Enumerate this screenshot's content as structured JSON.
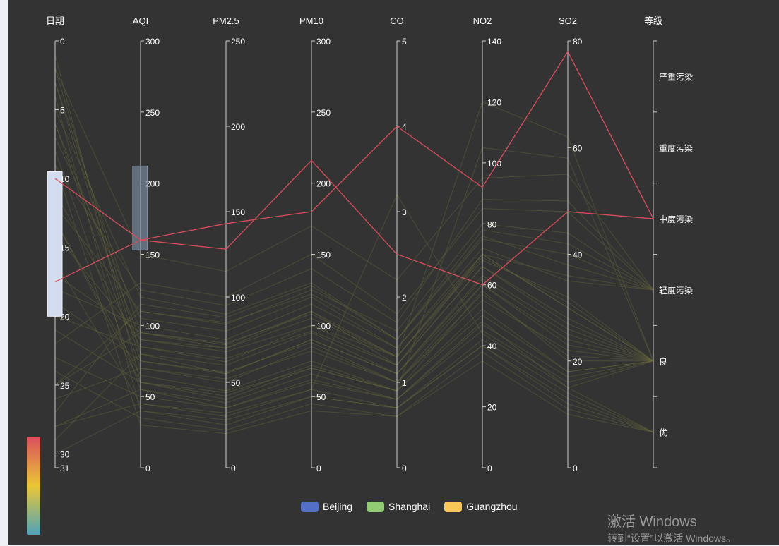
{
  "colors": {
    "background": "#333333",
    "axis": "#cccccc",
    "axis_label": "#ffffff",
    "brush": "#d4dcef",
    "brush_aqi": "#8496ae",
    "highlight": "#d94e5d",
    "faint": "#6a6a3e",
    "visualmap": [
      "#d94e5d",
      "#eac736",
      "#50a3ba"
    ]
  },
  "legend": [
    {
      "name": "Beijing",
      "color": "#5470c6"
    },
    {
      "name": "Shanghai",
      "color": "#91cc75"
    },
    {
      "name": "Guangzhou",
      "color": "#fac858"
    }
  ],
  "watermark": {
    "title": "激活 Windows",
    "subtitle": "转到“设置”以激活 Windows。"
  },
  "chart_data": {
    "type": "parallel",
    "axes": [
      {
        "name": "日期",
        "min": 0,
        "max": 31,
        "ticks": [
          0,
          5,
          10,
          15,
          20,
          25,
          30,
          31
        ],
        "inverse": true,
        "brush": [
          9.5,
          20
        ]
      },
      {
        "name": "AQI",
        "min": 0,
        "max": 300,
        "ticks": [
          0,
          50,
          100,
          150,
          200,
          250,
          300
        ],
        "brush": [
          153,
          212
        ]
      },
      {
        "name": "PM2.5",
        "min": 0,
        "max": 250,
        "ticks": [
          0,
          50,
          100,
          150,
          200,
          250
        ]
      },
      {
        "name": "PM10",
        "min": 0,
        "max": 300,
        "ticks": [
          0,
          50,
          100,
          150,
          200,
          250,
          300
        ]
      },
      {
        "name": "CO",
        "min": 0,
        "max": 5,
        "ticks": [
          0,
          1,
          2,
          3,
          4,
          5
        ]
      },
      {
        "name": "NO2",
        "min": 0,
        "max": 140,
        "ticks": [
          0,
          20,
          40,
          60,
          80,
          100,
          120,
          140
        ]
      },
      {
        "name": "SO2",
        "min": 0,
        "max": 80,
        "ticks": [
          0,
          20,
          40,
          60,
          80
        ]
      },
      {
        "name": "等级",
        "type": "category",
        "categories": [
          "优",
          "良",
          "轻度污染",
          "中度污染",
          "重度污染",
          "严重污染"
        ]
      }
    ],
    "highlighted": [
      [
        10,
        160,
        143,
        180,
        4,
        92,
        78,
        "中度污染"
      ],
      [
        17.5,
        160,
        128,
        216,
        2.5,
        60,
        48,
        "中度污染"
      ]
    ],
    "background_lines": [
      [
        1,
        60,
        40,
        70,
        0.9,
        50,
        18,
        "良"
      ],
      [
        2,
        80,
        55,
        90,
        1.1,
        62,
        25,
        "良"
      ],
      [
        3,
        95,
        70,
        110,
        1.2,
        70,
        30,
        "良"
      ],
      [
        4,
        40,
        25,
        50,
        0.7,
        40,
        12,
        "优"
      ],
      [
        5,
        120,
        90,
        130,
        1.5,
        75,
        40,
        "轻度污染"
      ],
      [
        6,
        70,
        50,
        85,
        1.0,
        55,
        22,
        "良"
      ],
      [
        7,
        105,
        80,
        120,
        1.4,
        72,
        35,
        "轻度污染"
      ],
      [
        8,
        55,
        35,
        60,
        0.8,
        48,
        15,
        "良"
      ],
      [
        9,
        30,
        20,
        40,
        0.6,
        35,
        10,
        "优"
      ],
      [
        11,
        85,
        62,
        100,
        1.2,
        66,
        28,
        "良"
      ],
      [
        12,
        110,
        84,
        125,
        1.6,
        80,
        44,
        "轻度污染"
      ],
      [
        13,
        65,
        45,
        75,
        0.9,
        58,
        20,
        "良"
      ],
      [
        14,
        90,
        70,
        105,
        1.3,
        68,
        32,
        "良"
      ],
      [
        16,
        45,
        30,
        55,
        0.7,
        42,
        14,
        "优"
      ],
      [
        18,
        100,
        75,
        115,
        1.4,
        70,
        36,
        "轻度污染"
      ],
      [
        19,
        75,
        55,
        90,
        1.1,
        60,
        24,
        "良"
      ],
      [
        21,
        60,
        42,
        72,
        0.9,
        52,
        18,
        "良"
      ],
      [
        22,
        130,
        100,
        150,
        1.8,
        85,
        48,
        "轻度污染"
      ],
      [
        23,
        50,
        35,
        62,
        0.8,
        45,
        16,
        "良"
      ],
      [
        24,
        35,
        22,
        45,
        0.6,
        38,
        11,
        "优"
      ],
      [
        25,
        95,
        72,
        110,
        1.3,
        70,
        30,
        "良"
      ],
      [
        26,
        70,
        52,
        82,
        1.0,
        57,
        21,
        "良"
      ],
      [
        27,
        115,
        88,
        128,
        1.5,
        78,
        42,
        "轻度污染"
      ],
      [
        28,
        55,
        38,
        66,
        0.8,
        47,
        17,
        "良"
      ],
      [
        29,
        80,
        60,
        95,
        1.1,
        63,
        26,
        "良"
      ],
      [
        30,
        40,
        28,
        50,
        0.7,
        40,
        13,
        "优"
      ],
      [
        2,
        150,
        115,
        170,
        2.2,
        95,
        55,
        "轻度污染"
      ],
      [
        6,
        90,
        68,
        100,
        1.3,
        120,
        62,
        "良"
      ],
      [
        9,
        125,
        95,
        140,
        1.7,
        88,
        50,
        "轻度污染"
      ],
      [
        13,
        60,
        44,
        70,
        0.9,
        105,
        58,
        "良"
      ],
      [
        20,
        85,
        64,
        96,
        1.2,
        66,
        27,
        "良"
      ],
      [
        25,
        110,
        85,
        122,
        1.5,
        76,
        38,
        "轻度污染"
      ],
      [
        28,
        45,
        32,
        55,
        3.2,
        44,
        15,
        "优"
      ],
      [
        3,
        75,
        56,
        88,
        1.0,
        60,
        23,
        "良"
      ],
      [
        17,
        95,
        73,
        108,
        1.3,
        69,
        31,
        "良"
      ]
    ]
  }
}
